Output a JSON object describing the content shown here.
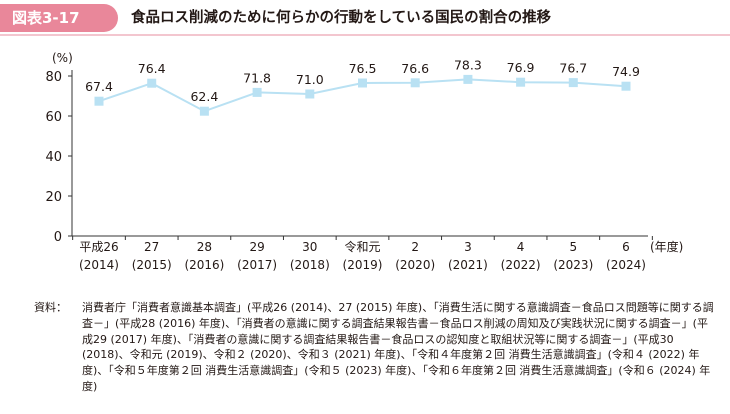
{
  "figure": {
    "label": "図表3-17",
    "title": "食品ロス削減のために何らかの行動をしている国民の割合の推移"
  },
  "chart_data": {
    "type": "line",
    "y_unit": "(%)",
    "x_unit": "(年度)",
    "ylim": [
      0,
      80
    ],
    "yticks": [
      0,
      20,
      40,
      60,
      80
    ],
    "grid": false,
    "x_labels_line1": [
      "平成26",
      "27",
      "28",
      "29",
      "30",
      "令和元",
      "2",
      "3",
      "4",
      "5",
      "6"
    ],
    "x_labels_line2": [
      "(2014)",
      "(2015)",
      "(2016)",
      "(2017)",
      "(2018)",
      "(2019)",
      "(2020)",
      "(2021)",
      "(2022)",
      "(2023)",
      "(2024)"
    ],
    "values": [
      67.4,
      76.4,
      62.4,
      71.8,
      71.0,
      76.5,
      76.6,
      78.3,
      76.9,
      76.7,
      74.9
    ],
    "value_labels": [
      "67.4",
      "76.4",
      "62.4",
      "71.8",
      "71.0",
      "76.5",
      "76.6",
      "78.3",
      "76.9",
      "76.7",
      "74.9"
    ],
    "line_color": "#b9e1f3",
    "marker_color": "#b9e1f3"
  },
  "source": {
    "key": "資料：",
    "text": "消費者庁「消費者意識基本調査」(平成26 (2014)、27 (2015) 年度)、「消費生活に関する意識調査－食品ロス問題等に関する調査－」(平成28 (2016) 年度)、「消費者の意識に関する調査結果報告書－食品ロス削減の周知及び実践状況に関する調査－」(平成29 (2017) 年度)、「消費者の意識に関する調査結果報告書－食品ロスの認知度と取組状況等に関する調査－」(平成30 (2018)、令和元 (2019)、令和２ (2020)、令和３ (2021) 年度)、「令和４年度第２回 消費生活意識調査」(令和４ (2022) 年度)、「令和５年度第２回 消費生活意識調査」(令和５ (2023) 年度)、「令和６年度第２回 消費生活意識調査」(令和６ (2024) 年度)"
  }
}
